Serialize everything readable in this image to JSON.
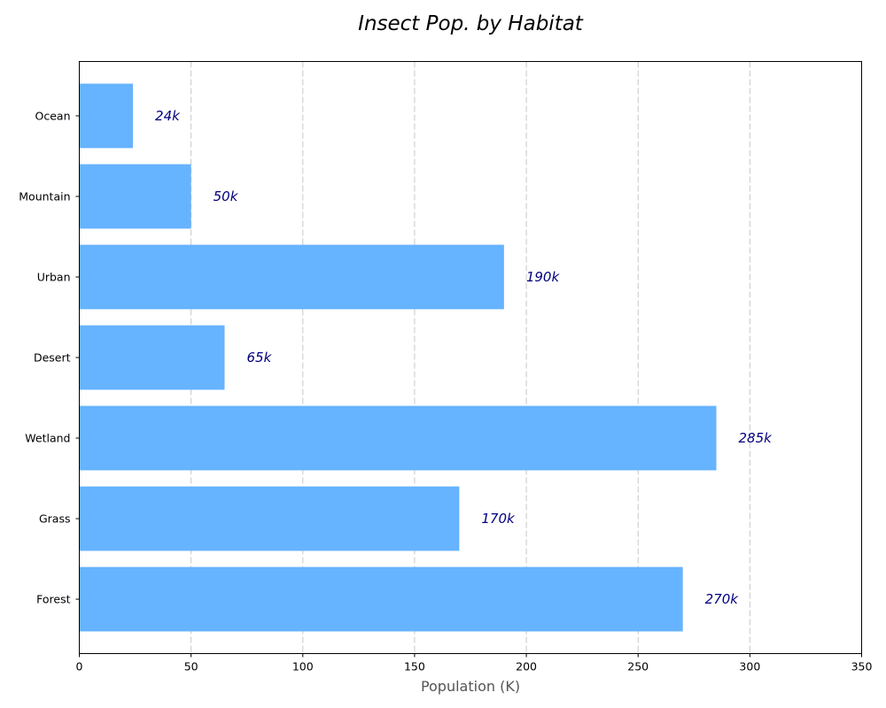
{
  "chart_data": {
    "type": "bar",
    "orientation": "horizontal",
    "title": "Insect Pop. by Habitat",
    "xlabel": "Population (K)",
    "ylabel": "",
    "categories": [
      "Forest",
      "Grass",
      "Wetland",
      "Desert",
      "Urban",
      "Mountain",
      "Ocean"
    ],
    "values": [
      270,
      170,
      285,
      65,
      190,
      50,
      24
    ],
    "data_labels": [
      "270k",
      "170k",
      "285k",
      "65k",
      "190k",
      "50k",
      "24k"
    ],
    "xlim": [
      0,
      350
    ],
    "xticks": [
      0,
      50,
      100,
      150,
      200,
      250,
      300,
      350
    ],
    "grid": "x-dashed",
    "colors": {
      "bar": "#66b3ff",
      "data_label": "#000080",
      "grid": "#c8c8c8"
    }
  }
}
